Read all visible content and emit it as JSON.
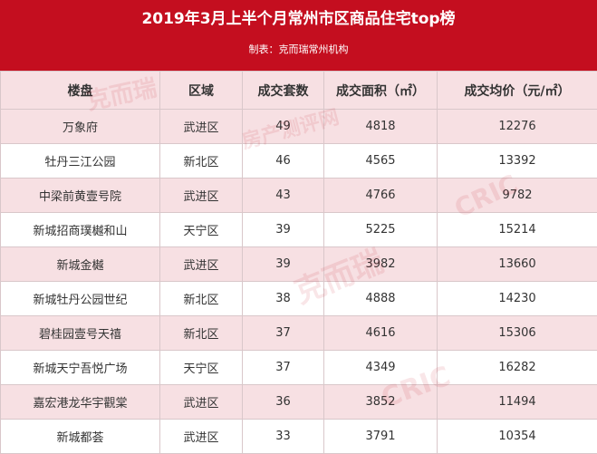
{
  "title": "2019年3月上半个月常州市区商品住宅top榜",
  "credit": "制表：克而瑞常州机构",
  "watermark": {
    "cric": "CRIC",
    "brand": "克而瑞",
    "tagline": "房产测评网"
  },
  "columns": [
    "楼盘",
    "区域",
    "成交套数",
    "成交面积（㎡）",
    "成交均价（元/㎡）"
  ],
  "colors": {
    "header_bg": "#c40e1f",
    "stripe": "#f7e0e3"
  },
  "rows": [
    [
      "万象府",
      "武进区",
      "49",
      "4818",
      "12276"
    ],
    [
      "牡丹三江公园",
      "新北区",
      "46",
      "4565",
      "13392"
    ],
    [
      "中梁前黄壹号院",
      "武进区",
      "43",
      "4766",
      "9782"
    ],
    [
      "新城招商璞樾和山",
      "天宁区",
      "39",
      "5225",
      "15214"
    ],
    [
      "新城金樾",
      "武进区",
      "39",
      "3982",
      "13660"
    ],
    [
      "新城牡丹公园世纪",
      "新北区",
      "38",
      "4888",
      "14230"
    ],
    [
      "碧桂园壹号天禧",
      "新北区",
      "37",
      "4616",
      "15306"
    ],
    [
      "新城天宁吾悦广场",
      "天宁区",
      "37",
      "4349",
      "16282"
    ],
    [
      "嘉宏港龙华宇觀棠",
      "武进区",
      "36",
      "3852",
      "11494"
    ],
    [
      "新城都荟",
      "武进区",
      "33",
      "3791",
      "10354"
    ]
  ]
}
